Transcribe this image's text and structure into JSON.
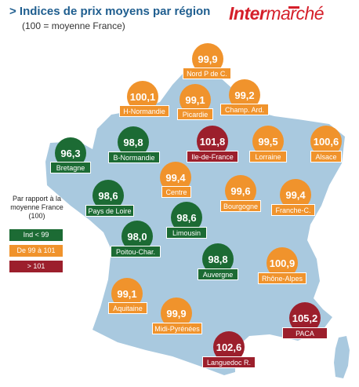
{
  "header": {
    "title": "> Indices de prix moyens par région",
    "subtitle": "(100 = moyenne France)",
    "brand_part1": "Inter",
    "brand_part2": "marché"
  },
  "legend": {
    "title": "Par rapport à la moyenne France (100)",
    "items": [
      {
        "label": "Ind < 99",
        "color": "#1c6b34"
      },
      {
        "label": "De 99 à 101",
        "color": "#f0932c"
      },
      {
        "label": "> 101",
        "color": "#9c1f2c"
      }
    ]
  },
  "colors": {
    "map_fill": "#a9c9df",
    "green": "#1c6b34",
    "orange": "#f0932c",
    "red": "#9c1f2c"
  },
  "regions": [
    {
      "name": "Nord P de C.",
      "value": "99,9"
    },
    {
      "name": "H-Normandie",
      "value": "100,1"
    },
    {
      "name": "Picardie",
      "value": "99,1"
    },
    {
      "name": "Champ. Ard.",
      "value": "99,2"
    },
    {
      "name": "Bretagne",
      "value": "96,3"
    },
    {
      "name": "B-Normandie",
      "value": "98,8"
    },
    {
      "name": "Ile-de-France",
      "value": "101,8"
    },
    {
      "name": "Lorraine",
      "value": "99,5"
    },
    {
      "name": "Alsace",
      "value": "100,6"
    },
    {
      "name": "Centre",
      "value": "99,4"
    },
    {
      "name": "Bourgogne",
      "value": "99,6"
    },
    {
      "name": "Franche-C.",
      "value": "99,4"
    },
    {
      "name": "Pays de Loire",
      "value": "98,6"
    },
    {
      "name": "Limousin",
      "value": "98,6"
    },
    {
      "name": "Poitou-Char.",
      "value": "98,0"
    },
    {
      "name": "Auvergne",
      "value": "98,8"
    },
    {
      "name": "Rhône-Alpes",
      "value": "100,9"
    },
    {
      "name": "Aquitaine",
      "value": "99,1"
    },
    {
      "name": "Midi-Pyrénées",
      "value": "99,9"
    },
    {
      "name": "PACA",
      "value": "105,2"
    },
    {
      "name": "Languedoc R.",
      "value": "102,6"
    }
  ]
}
